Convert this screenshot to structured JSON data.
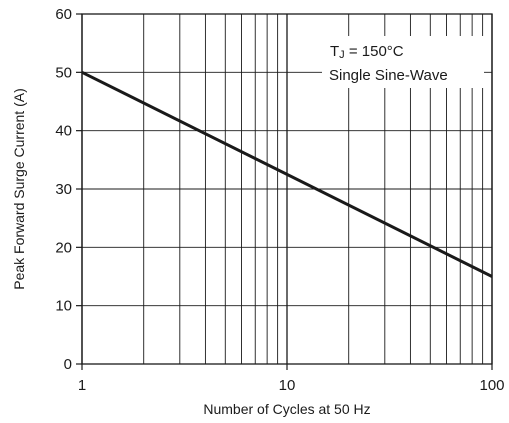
{
  "chart_data": {
    "type": "line",
    "title": "",
    "xlabel": "Number of Cycles at 50 Hz",
    "ylabel": "Peak Forward Surge Current (A)",
    "x_scale": "log",
    "xlim": [
      1,
      100
    ],
    "ylim": [
      0,
      60
    ],
    "x_ticks": [
      1,
      10,
      100
    ],
    "x_tick_labels": [
      "1",
      "10",
      "100"
    ],
    "y_ticks": [
      0,
      10,
      20,
      30,
      40,
      50,
      60
    ],
    "y_tick_labels": [
      "0",
      "10",
      "20",
      "30",
      "40",
      "50",
      "60"
    ],
    "grid": true,
    "legend": "none",
    "annotation": {
      "line1_prefix": "T",
      "line1_sub": "J",
      "line1_suffix": " = 150°C",
      "line2": "Single Sine-Wave",
      "placement": "top-right"
    },
    "series": [
      {
        "color": "#1a1a1a",
        "x": [
          1,
          100
        ],
        "y": [
          50,
          15
        ]
      }
    ]
  }
}
